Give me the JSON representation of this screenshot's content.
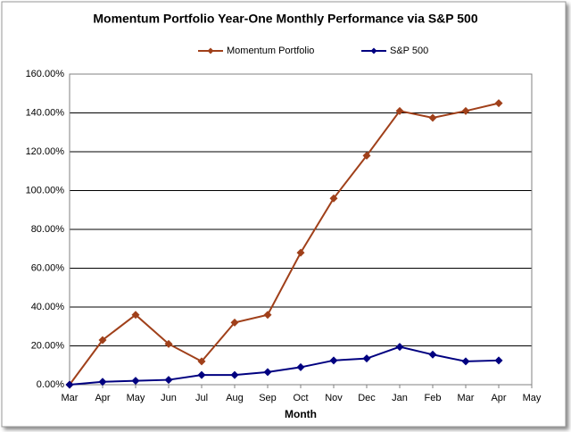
{
  "chart_data": {
    "type": "line",
    "title": "Momentum Portfolio Year-One Monthly Performance via S&P 500",
    "x_label": "Month",
    "categories": [
      "Mar",
      "Apr",
      "May",
      "Jun",
      "Jul",
      "Aug",
      "Sep",
      "Oct",
      "Nov",
      "Dec",
      "Jan",
      "Feb",
      "Mar",
      "Apr",
      "May"
    ],
    "series": [
      {
        "name": "Momentum Portfolio",
        "color": "#a0401a",
        "values": [
          0,
          23,
          36,
          21,
          12,
          32,
          36,
          68,
          96,
          118,
          141,
          137.5,
          141,
          145,
          null
        ]
      },
      {
        "name": "S&P 500",
        "color": "#000080",
        "values": [
          0,
          1.5,
          2,
          2.5,
          5,
          5,
          6.5,
          9,
          12.5,
          13.5,
          19.5,
          15.5,
          12,
          12.5,
          null
        ]
      }
    ],
    "ylim": [
      0,
      160
    ],
    "yticks": [
      {
        "value": 0,
        "label": "0.00%"
      },
      {
        "value": 20,
        "label": "20.00%"
      },
      {
        "value": 40,
        "label": "40.00%"
      },
      {
        "value": 60,
        "label": "60.00%"
      },
      {
        "value": 80,
        "label": "80.00%"
      },
      {
        "value": 100,
        "label": "100.00%"
      },
      {
        "value": 120,
        "label": "120.00%"
      },
      {
        "value": 140,
        "label": "140.00%"
      },
      {
        "value": 160,
        "label": "160.00%"
      }
    ],
    "grid": true,
    "legend": "top"
  }
}
